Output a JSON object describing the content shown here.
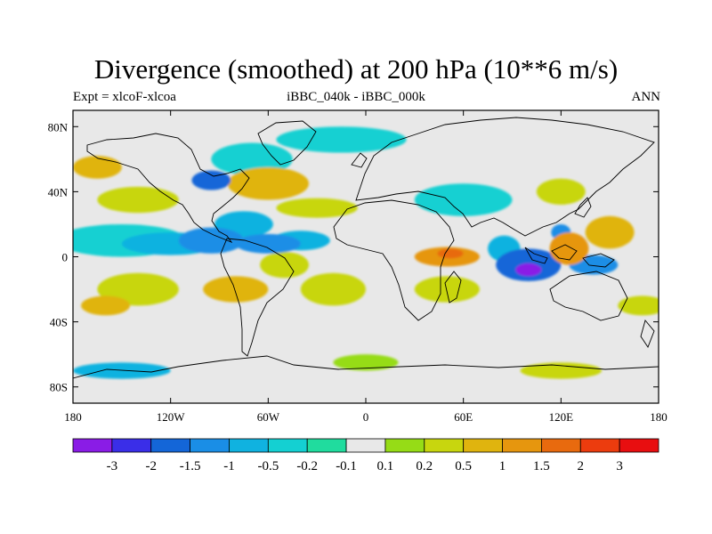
{
  "header": {
    "title": "Divergence (smoothed) at 200 hPa (10**6 m/s)",
    "left": "Expt = xlcoF-xlcoa",
    "center": "iBBC_040k - iBBC_000k",
    "right": "ANN"
  },
  "chart_data": {
    "type": "heatmap",
    "title": "Divergence (smoothed) at 200 hPa (10**6 m/s)",
    "projection": "cylindrical-equidistant",
    "xlim": [
      -180,
      180
    ],
    "ylim": [
      -90,
      90
    ],
    "x_ticks": [
      {
        "value": -180,
        "label": "180"
      },
      {
        "value": -120,
        "label": "120W"
      },
      {
        "value": -60,
        "label": "60W"
      },
      {
        "value": 0,
        "label": "0"
      },
      {
        "value": 60,
        "label": "60E"
      },
      {
        "value": 120,
        "label": "120E"
      },
      {
        "value": 180,
        "label": "180"
      }
    ],
    "y_ticks": [
      {
        "value": 80,
        "label": "80N"
      },
      {
        "value": 40,
        "label": "40N"
      },
      {
        "value": 0,
        "label": "0"
      },
      {
        "value": -40,
        "label": "40S"
      },
      {
        "value": -80,
        "label": "80S"
      }
    ],
    "colorbar": {
      "colors": [
        "#8a1ce6",
        "#3a2ee8",
        "#1466d8",
        "#1a8ee6",
        "#10b2e0",
        "#14d0d2",
        "#20dc9e",
        "#e8e8e8",
        "#96dc16",
        "#c8d60e",
        "#e0b40e",
        "#e6960e",
        "#e86a0e",
        "#ec3c0e",
        "#e80e10"
      ],
      "levels": [
        "-3",
        "-2",
        "-1.5",
        "-1",
        "-0.5",
        "-0.2",
        "-0.1",
        "0.1",
        "0.2",
        "0.5",
        "1",
        "1.5",
        "2",
        "3"
      ]
    },
    "blobs": [
      {
        "lon": -150,
        "lat": 10,
        "rx": 40,
        "ry": 10,
        "v": -0.2
      },
      {
        "lon": -120,
        "lat": 8,
        "rx": 30,
        "ry": 7,
        "v": -0.5
      },
      {
        "lon": -95,
        "lat": 10,
        "rx": 20,
        "ry": 8,
        "v": -1
      },
      {
        "lon": -60,
        "lat": 8,
        "rx": 20,
        "ry": 6,
        "v": -1
      },
      {
        "lon": -40,
        "lat": 10,
        "rx": 18,
        "ry": 6,
        "v": -0.5
      },
      {
        "lon": -75,
        "lat": 20,
        "rx": 18,
        "ry": 8,
        "v": -0.5
      },
      {
        "lon": -95,
        "lat": 47,
        "rx": 12,
        "ry": 6,
        "v": -1.5
      },
      {
        "lon": -70,
        "lat": 60,
        "rx": 25,
        "ry": 10,
        "v": -0.2
      },
      {
        "lon": -15,
        "lat": 72,
        "rx": 40,
        "ry": 8,
        "v": -0.2
      },
      {
        "lon": 60,
        "lat": 35,
        "rx": 30,
        "ry": 10,
        "v": -0.2
      },
      {
        "lon": 100,
        "lat": -5,
        "rx": 20,
        "ry": 10,
        "v": -1.5
      },
      {
        "lon": 100,
        "lat": -8,
        "rx": 8,
        "ry": 4,
        "v": -3
      },
      {
        "lon": 140,
        "lat": -5,
        "rx": 15,
        "ry": 6,
        "v": -1
      },
      {
        "lon": 120,
        "lat": 15,
        "rx": 6,
        "ry": 5,
        "v": -1
      },
      {
        "lon": 85,
        "lat": 5,
        "rx": 10,
        "ry": 8,
        "v": -0.5
      },
      {
        "lon": -165,
        "lat": 55,
        "rx": 15,
        "ry": 7,
        "v": 1
      },
      {
        "lon": -60,
        "lat": 45,
        "rx": 25,
        "ry": 10,
        "v": 1
      },
      {
        "lon": -30,
        "lat": 30,
        "rx": 25,
        "ry": 6,
        "v": 0.5
      },
      {
        "lon": -140,
        "lat": 35,
        "rx": 25,
        "ry": 8,
        "v": 0.5
      },
      {
        "lon": -80,
        "lat": -20,
        "rx": 20,
        "ry": 8,
        "v": 1
      },
      {
        "lon": -50,
        "lat": -5,
        "rx": 15,
        "ry": 8,
        "v": 0.5
      },
      {
        "lon": -140,
        "lat": -20,
        "rx": 25,
        "ry": 10,
        "v": 0.5
      },
      {
        "lon": -160,
        "lat": -30,
        "rx": 15,
        "ry": 6,
        "v": 1
      },
      {
        "lon": -20,
        "lat": -20,
        "rx": 20,
        "ry": 10,
        "v": 0.5
      },
      {
        "lon": 50,
        "lat": 0,
        "rx": 20,
        "ry": 6,
        "v": 1.5
      },
      {
        "lon": 52,
        "lat": 2,
        "rx": 8,
        "ry": 3,
        "v": 2
      },
      {
        "lon": 125,
        "lat": 5,
        "rx": 12,
        "ry": 10,
        "v": 1.5
      },
      {
        "lon": 150,
        "lat": 15,
        "rx": 15,
        "ry": 10,
        "v": 1
      },
      {
        "lon": 50,
        "lat": -20,
        "rx": 20,
        "ry": 8,
        "v": 0.5
      },
      {
        "lon": 120,
        "lat": 40,
        "rx": 15,
        "ry": 8,
        "v": 0.5
      },
      {
        "lon": 170,
        "lat": -30,
        "rx": 15,
        "ry": 6,
        "v": 0.5
      },
      {
        "lon": -150,
        "lat": -70,
        "rx": 30,
        "ry": 5,
        "v": -0.5
      },
      {
        "lon": 120,
        "lat": -70,
        "rx": 25,
        "ry": 5,
        "v": 0.5
      },
      {
        "lon": 0,
        "lat": -65,
        "rx": 20,
        "ry": 5,
        "v": 0.2
      }
    ]
  }
}
